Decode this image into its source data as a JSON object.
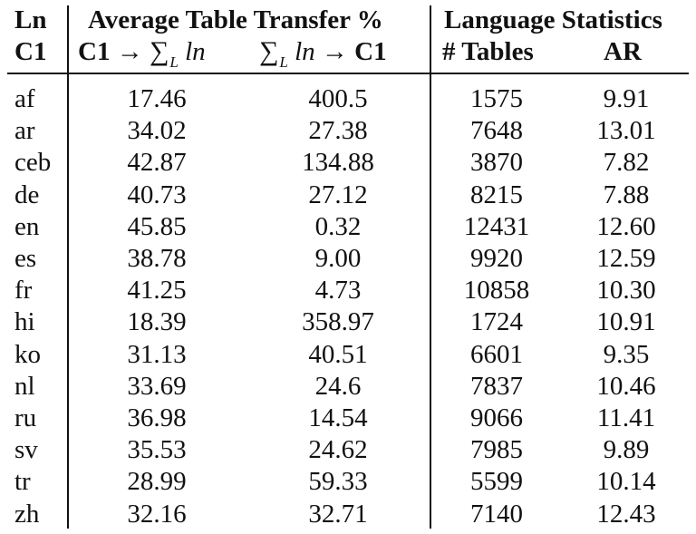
{
  "table": {
    "header": {
      "row1": {
        "ln": "Ln",
        "group1": "Average Table Transfer %",
        "group2": "Language Statistics"
      },
      "row2": {
        "c1": "C1",
        "transfer_a": {
          "left": "C1",
          "arrow": "→",
          "sigma": "∑",
          "sub": "L",
          "var": "ln"
        },
        "transfer_b": {
          "sigma": "∑",
          "sub": "L",
          "var": "ln",
          "arrow": "→",
          "right": "C1"
        },
        "tables": "# Tables",
        "ar": "AR"
      }
    },
    "rows": [
      {
        "lang": "af",
        "c1_to_ln": "17.46",
        "ln_to_c1": "400.5",
        "tables": "1575",
        "ar": "9.91"
      },
      {
        "lang": "ar",
        "c1_to_ln": "34.02",
        "ln_to_c1": "27.38",
        "tables": "7648",
        "ar": "13.01"
      },
      {
        "lang": "ceb",
        "c1_to_ln": "42.87",
        "ln_to_c1": "134.88",
        "tables": "3870",
        "ar": "7.82"
      },
      {
        "lang": "de",
        "c1_to_ln": "40.73",
        "ln_to_c1": "27.12",
        "tables": "8215",
        "ar": "7.88"
      },
      {
        "lang": "en",
        "c1_to_ln": "45.85",
        "ln_to_c1": "0.32",
        "tables": "12431",
        "ar": "12.60"
      },
      {
        "lang": "es",
        "c1_to_ln": "38.78",
        "ln_to_c1": "9.00",
        "tables": "9920",
        "ar": "12.59"
      },
      {
        "lang": "fr",
        "c1_to_ln": "41.25",
        "ln_to_c1": "4.73",
        "tables": "10858",
        "ar": "10.30"
      },
      {
        "lang": "hi",
        "c1_to_ln": "18.39",
        "ln_to_c1": "358.97",
        "tables": "1724",
        "ar": "10.91"
      },
      {
        "lang": "ko",
        "c1_to_ln": "31.13",
        "ln_to_c1": "40.51",
        "tables": "6601",
        "ar": "9.35"
      },
      {
        "lang": "nl",
        "c1_to_ln": "33.69",
        "ln_to_c1": "24.6",
        "tables": "7837",
        "ar": "10.46"
      },
      {
        "lang": "ru",
        "c1_to_ln": "36.98",
        "ln_to_c1": "14.54",
        "tables": "9066",
        "ar": "11.41"
      },
      {
        "lang": "sv",
        "c1_to_ln": "35.53",
        "ln_to_c1": "24.62",
        "tables": "7985",
        "ar": "9.89"
      },
      {
        "lang": "tr",
        "c1_to_ln": "28.99",
        "ln_to_c1": "59.33",
        "tables": "5599",
        "ar": "10.14"
      },
      {
        "lang": "zh",
        "c1_to_ln": "32.16",
        "ln_to_c1": "32.71",
        "tables": "7140",
        "ar": "12.43"
      }
    ]
  }
}
